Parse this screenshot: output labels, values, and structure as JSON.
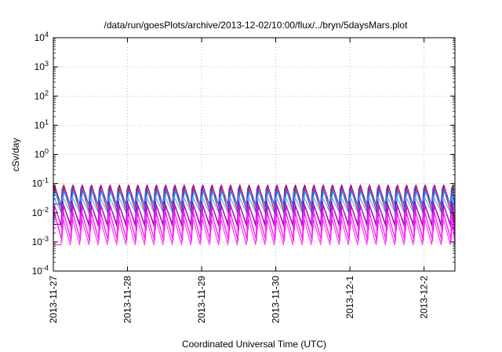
{
  "chart_data": {
    "type": "line",
    "title": "/data/run/goesPlots/archive/2013-12-02/10:00/flux/../bryn/5daysMars.plot",
    "xlabel": "Coordinated Universal Time (UTC)",
    "ylabel": "cSv/day",
    "yscale": "log",
    "grid": true,
    "legend": "none",
    "xlim": [
      "2013-11-27T00:00",
      "2013-12-02T10:00"
    ],
    "ylim": [
      0.0001,
      10000
    ],
    "x_ticks": [
      "2013-11-27",
      "2013-11-28",
      "2013-11-29",
      "2013-11-30",
      "2013-12-1",
      "2013-12-2"
    ],
    "y_ticks": [
      {
        "value": 0.0001,
        "base": "10",
        "exp": "-4"
      },
      {
        "value": 0.001,
        "base": "10",
        "exp": "-3"
      },
      {
        "value": 0.01,
        "base": "10",
        "exp": "-2"
      },
      {
        "value": 0.1,
        "base": "10",
        "exp": "-1"
      },
      {
        "value": 1,
        "base": "10",
        "exp": "0"
      },
      {
        "value": 10,
        "base": "10",
        "exp": "1"
      },
      {
        "value": 100,
        "base": "10",
        "exp": "2"
      },
      {
        "value": 1000,
        "base": "10",
        "exp": "3"
      },
      {
        "value": 10000,
        "base": "10",
        "exp": "4"
      }
    ],
    "cycle_hours": 3,
    "series": [
      {
        "color": "#8b008b",
        "peak": 0.09,
        "trough": 0.012
      },
      {
        "color": "#dc143c",
        "peak": 0.08,
        "trough": 0.01
      },
      {
        "color": "#3050e0",
        "peak": 0.07,
        "trough": 0.02
      },
      {
        "color": "#1e90ff",
        "peak": 0.055,
        "trough": 0.015
      },
      {
        "color": "#40c0ff",
        "peak": 0.035,
        "trough": 0.009
      },
      {
        "color": "#9400d3",
        "peak": 0.025,
        "trough": 0.004
      },
      {
        "color": "#c000c0",
        "peak": 0.018,
        "trough": 0.0025
      },
      {
        "color": "#ff00ff",
        "peak": 0.012,
        "trough": 0.0011
      },
      {
        "color": "#ff3cf0",
        "peak": 0.008,
        "trough": 0.0008
      }
    ]
  }
}
